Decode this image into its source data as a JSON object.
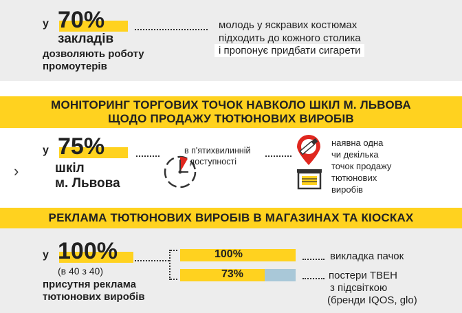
{
  "top_block": {
    "prefix": "у",
    "percent": "70%",
    "noun": "закладів",
    "desc_line1": "дозволяють роботу",
    "desc_line2": "промоутерів",
    "detail_line1": "молодь у яскравих костюмах",
    "detail_line2": "підходить до кожного столика",
    "detail_line3": "і пропонує придбати сигарети"
  },
  "banner1": {
    "line1": "МОНІТОРИНГ ТОРГОВИХ ТОЧОК НАВКОЛО ШКІЛ М. ЛЬВОВА",
    "line2": "ЩОДО ПРОДАЖУ ТЮТЮНОВИХ ВИРОБІВ"
  },
  "schools_block": {
    "prefix": "у",
    "percent": "75%",
    "noun_line1": "шкіл",
    "noun_line2": "м. Львова",
    "clock_text_line1": "в п'ятихвилинній",
    "clock_text_line2": "доступності",
    "clock_fraction": 0.083,
    "shop_line1": "наявна одна",
    "shop_line2": "чи декілька",
    "shop_line3": "точок продажу",
    "shop_line4": "тютюнових",
    "shop_line5": "виробів",
    "icons": [
      "stopwatch-icon",
      "cigarette-pin-icon",
      "kiosk-icon"
    ]
  },
  "banner2": {
    "line1": "РЕКЛАМА ТЮТЮНОВИХ ВИРОБІВ В МАГАЗИНАХ ТА КІОСКАХ"
  },
  "ads_block": {
    "prefix": "у",
    "percent": "100%",
    "sub": "(в 40 з 40)",
    "desc_line1": "присутня реклама",
    "desc_line2": "тютюнових виробів",
    "bars": [
      {
        "label": "100%",
        "fraction": 1.0,
        "text_line1": "викладка пачок",
        "text_line2": "",
        "text_line3": ""
      },
      {
        "label": "73%",
        "fraction": 0.73,
        "text_line1": "постери ТВЕН",
        "text_line2": "з підсвіткою",
        "text_line3": "(бренди IQOS, glo)"
      }
    ]
  },
  "colors": {
    "accent": "#ffd21f",
    "grey_bg": "#ededed",
    "bar_rest": "#a9c8d8",
    "clock_red": "#e0271f"
  }
}
